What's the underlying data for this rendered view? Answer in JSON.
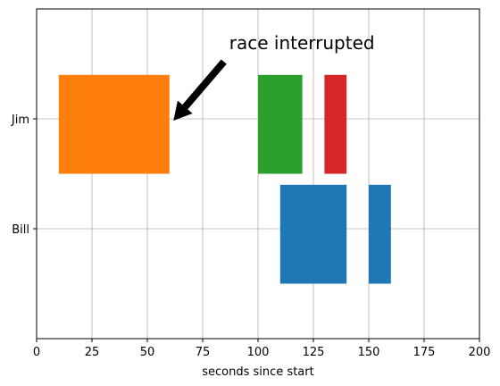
{
  "chart_data": {
    "type": "broken_barh",
    "xlabel": "seconds since start",
    "ylabel": "",
    "title": "",
    "xlim": [
      0,
      200
    ],
    "ylim": [
      5,
      35
    ],
    "grid": true,
    "xticks": [
      0,
      25,
      50,
      75,
      100,
      125,
      150,
      175,
      200
    ],
    "yticks": [
      {
        "value": 15,
        "label": "Bill"
      },
      {
        "value": 25,
        "label": "Jim"
      }
    ],
    "rows": [
      {
        "label": "Jim",
        "y_start": 20,
        "height": 9,
        "segments": [
          {
            "start": 10,
            "width": 50,
            "color": "#ff7f0e"
          },
          {
            "start": 100,
            "width": 20,
            "color": "#2ca02c"
          },
          {
            "start": 130,
            "width": 10,
            "color": "#d62728"
          }
        ]
      },
      {
        "label": "Bill",
        "y_start": 10,
        "height": 9,
        "segments": [
          {
            "start": 110,
            "width": 30,
            "color": "#1f77b4"
          },
          {
            "start": 150,
            "width": 10,
            "color": "#1f77b4"
          }
        ]
      }
    ],
    "annotation": {
      "text": "race interrupted",
      "point": [
        61,
        25
      ],
      "text_anchor_point": [
        87,
        31.5
      ]
    }
  }
}
